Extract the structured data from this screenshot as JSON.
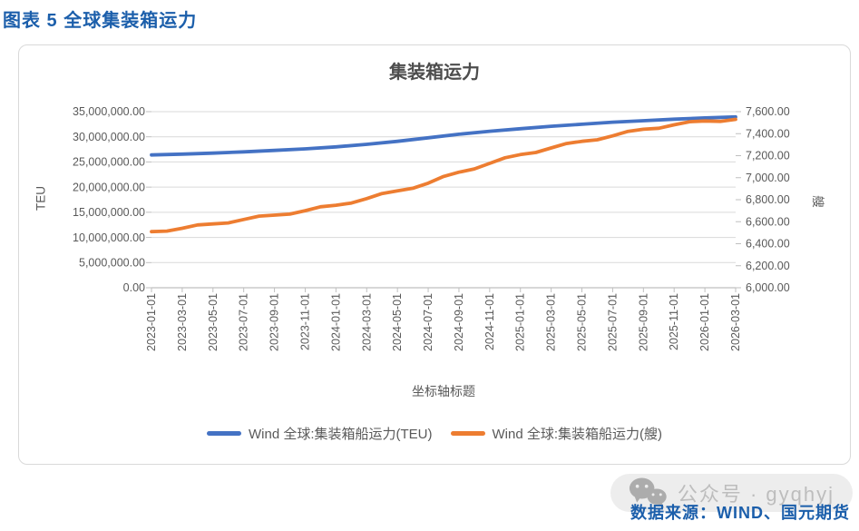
{
  "page": {
    "caption": "图表 5 全球集装箱运力",
    "source_note": "数据来源：WIND、国元期货",
    "watermark_text": "公众号 · gyqhyj"
  },
  "colors": {
    "header_blue": "#1C5FAB",
    "series_teu_blue": "#4472C4",
    "series_ships_orange": "#ED7D31",
    "gridline": "#D9D9D9",
    "axis_line": "#BFBFBF",
    "tick_label": "#595959",
    "watermark_gray": "#ACACAC"
  },
  "chart_data": {
    "type": "line",
    "title": "集装箱运力",
    "x_axis_title": "坐标轴标题",
    "grid": true,
    "legend_position": "bottom",
    "y_left": {
      "title": "TEU",
      "min": 0,
      "max": 35000000,
      "tick_step": 5000000,
      "tick_labels": [
        "35,000,000.00",
        "30,000,000.00",
        "25,000,000.00",
        "20,000,000.00",
        "15,000,000.00",
        "10,000,000.00",
        "5,000,000.00",
        "0.00"
      ]
    },
    "y_right": {
      "title": "艘",
      "min": 6000,
      "max": 7600,
      "tick_step": 200,
      "tick_labels": [
        "7,600.00",
        "7,400.00",
        "7,200.00",
        "7,000.00",
        "6,800.00",
        "6,600.00",
        "6,400.00",
        "6,200.00",
        "6,000.00"
      ]
    },
    "x": [
      "2023-01-01",
      "2023-03-01",
      "2023-05-01",
      "2023-07-01",
      "2023-09-01",
      "2023-11-01",
      "2024-01-01",
      "2024-03-01",
      "2024-05-01",
      "2024-07-01",
      "2024-09-01",
      "2024-11-01",
      "2025-01-01",
      "2025-03-01",
      "2025-05-01",
      "2025-07-01",
      "2025-09-01",
      "2025-11-01",
      "2026-01-01",
      "2026-03-01"
    ],
    "series": [
      {
        "name": "Wind 全球:集装箱船运力(TEU)",
        "axis": "left",
        "color": "#4472C4",
        "values": [
          26400000,
          26550000,
          26750000,
          27000000,
          27300000,
          27600000,
          28000000,
          28500000,
          29100000,
          29800000,
          30500000,
          31100000,
          31600000,
          32100000,
          32500000,
          32900000,
          33200000,
          33500000,
          33750000,
          33950000
        ]
      },
      {
        "name": "Wind 全球:集装箱船运力(艘)",
        "axis": "right",
        "color": "#ED7D31",
        "values": [
          6510,
          6540,
          6580,
          6620,
          6660,
          6700,
          6750,
          6810,
          6880,
          6950,
          7050,
          7130,
          7210,
          7270,
          7330,
          7380,
          7440,
          7480,
          7515,
          7530
        ]
      }
    ]
  }
}
